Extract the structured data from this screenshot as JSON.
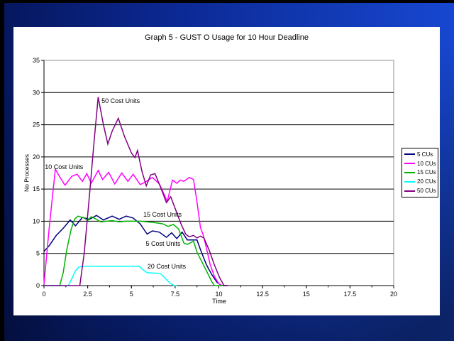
{
  "slide": {
    "frame_color_dark": "#06175e",
    "frame_color_bright": "#1747d0",
    "sheet_color": "#ffffff"
  },
  "chart_data": {
    "type": "line",
    "title": "Graph 5 - GUST O Usage for 10 Hour Deadline",
    "xlabel": "Time",
    "ylabel": "No Processes",
    "xlim": [
      0,
      20
    ],
    "ylim": [
      0,
      35
    ],
    "x_ticks": [
      0,
      2.5,
      5,
      7.5,
      10,
      12.5,
      15,
      17.5,
      20
    ],
    "y_ticks": [
      0,
      5,
      10,
      15,
      20,
      25,
      30,
      35
    ],
    "grid": "horizontal-black",
    "plot_border_color": "#909090",
    "legend_position": "right",
    "series": [
      {
        "name": "5 CUs",
        "color": "#000080",
        "points": [
          [
            0,
            5.3
          ],
          [
            0.3,
            6.2
          ],
          [
            0.7,
            7.8
          ],
          [
            1.1,
            8.9
          ],
          [
            1.5,
            10.2
          ],
          [
            1.8,
            9.3
          ],
          [
            2.2,
            10.6
          ],
          [
            2.6,
            10.3
          ],
          [
            3.0,
            10.9
          ],
          [
            3.4,
            10.2
          ],
          [
            3.9,
            10.8
          ],
          [
            4.3,
            10.3
          ],
          [
            4.7,
            10.8
          ],
          [
            5.1,
            10.5
          ],
          [
            5.5,
            9.6
          ],
          [
            5.9,
            8.0
          ],
          [
            6.2,
            8.5
          ],
          [
            6.6,
            8.3
          ],
          [
            7.0,
            7.5
          ],
          [
            7.3,
            8.2
          ],
          [
            7.6,
            7.3
          ],
          [
            7.9,
            8.3
          ],
          [
            8.2,
            7.1
          ],
          [
            8.75,
            7.1
          ],
          [
            9.0,
            5.2
          ],
          [
            9.3,
            3.2
          ],
          [
            9.6,
            1.7
          ],
          [
            9.9,
            0.5
          ],
          [
            10.15,
            0
          ],
          [
            10.5,
            0
          ]
        ]
      },
      {
        "name": "10 CUs",
        "color": "#ff00ff",
        "points": [
          [
            0,
            0.2
          ],
          [
            0.3,
            9.0
          ],
          [
            0.65,
            18.1
          ],
          [
            0.9,
            16.9
          ],
          [
            1.2,
            15.6
          ],
          [
            1.6,
            17.0
          ],
          [
            1.9,
            17.3
          ],
          [
            2.2,
            16.2
          ],
          [
            2.45,
            17.4
          ],
          [
            2.7,
            15.9
          ],
          [
            3.1,
            17.9
          ],
          [
            3.35,
            16.5
          ],
          [
            3.7,
            17.6
          ],
          [
            4.05,
            15.8
          ],
          [
            4.45,
            17.5
          ],
          [
            4.8,
            16.2
          ],
          [
            5.1,
            17.3
          ],
          [
            5.5,
            15.7
          ],
          [
            5.8,
            16.1
          ],
          [
            6.2,
            16.8
          ],
          [
            6.6,
            15.8
          ],
          [
            7.05,
            13.1
          ],
          [
            7.35,
            16.4
          ],
          [
            7.6,
            15.9
          ],
          [
            7.8,
            16.4
          ],
          [
            8.0,
            16.2
          ],
          [
            8.3,
            16.8
          ],
          [
            8.55,
            16.5
          ],
          [
            8.75,
            13.0
          ],
          [
            8.95,
            9.0
          ],
          [
            9.1,
            7.9
          ],
          [
            9.25,
            6.3
          ],
          [
            9.5,
            3.3
          ],
          [
            9.75,
            1.4
          ],
          [
            10.0,
            0.3
          ],
          [
            10.2,
            0
          ],
          [
            10.5,
            0
          ]
        ]
      },
      {
        "name": "15 CUs",
        "color": "#00b400",
        "points": [
          [
            0,
            0
          ],
          [
            0.9,
            0
          ],
          [
            1.1,
            2.0
          ],
          [
            1.3,
            5.5
          ],
          [
            1.55,
            8.7
          ],
          [
            1.75,
            10.3
          ],
          [
            1.95,
            10.8
          ],
          [
            2.3,
            10.5
          ],
          [
            2.5,
            10.1
          ],
          [
            2.7,
            10.7
          ],
          [
            3.0,
            10.3
          ],
          [
            3.25,
            9.9
          ],
          [
            3.6,
            10.0
          ],
          [
            3.9,
            10.1
          ],
          [
            4.3,
            9.9
          ],
          [
            4.7,
            10.0
          ],
          [
            5.1,
            10.0
          ],
          [
            5.5,
            10.0
          ],
          [
            5.9,
            9.9
          ],
          [
            6.3,
            9.8
          ],
          [
            6.8,
            9.6
          ],
          [
            7.1,
            9.2
          ],
          [
            7.4,
            9.5
          ],
          [
            7.7,
            8.8
          ],
          [
            8.0,
            6.6
          ],
          [
            8.2,
            6.4
          ],
          [
            8.55,
            6.9
          ],
          [
            8.75,
            5.2
          ],
          [
            9.1,
            3.3
          ],
          [
            9.4,
            1.7
          ],
          [
            9.6,
            0.6
          ],
          [
            9.75,
            0
          ],
          [
            10.5,
            0
          ]
        ]
      },
      {
        "name": "20 CUs",
        "color": "#00ffff",
        "points": [
          [
            0,
            0
          ],
          [
            1.4,
            0
          ],
          [
            1.6,
            1.1
          ],
          [
            1.8,
            2.3
          ],
          [
            2.0,
            2.9
          ],
          [
            2.3,
            3.0
          ],
          [
            5.45,
            3.0
          ],
          [
            5.65,
            2.5
          ],
          [
            5.9,
            2.0
          ],
          [
            6.65,
            1.9
          ],
          [
            6.95,
            1.1
          ],
          [
            7.2,
            0.4
          ],
          [
            7.45,
            0
          ],
          [
            7.6,
            0
          ]
        ]
      },
      {
        "name": "50 CUs",
        "color": "#800080",
        "points": [
          [
            0,
            0
          ],
          [
            2.05,
            0
          ],
          [
            2.3,
            5.0
          ],
          [
            2.6,
            14.0
          ],
          [
            2.85,
            22.0
          ],
          [
            3.1,
            29.3
          ],
          [
            3.4,
            25.0
          ],
          [
            3.65,
            22.0
          ],
          [
            3.9,
            24.0
          ],
          [
            4.25,
            26.0
          ],
          [
            4.6,
            23.2
          ],
          [
            5.0,
            20.6
          ],
          [
            5.2,
            19.9
          ],
          [
            5.35,
            21.0
          ],
          [
            5.6,
            17.8
          ],
          [
            5.85,
            15.5
          ],
          [
            6.1,
            17.2
          ],
          [
            6.35,
            17.4
          ],
          [
            6.65,
            15.4
          ],
          [
            7.0,
            12.9
          ],
          [
            7.25,
            13.8
          ],
          [
            7.6,
            11.3
          ],
          [
            7.85,
            9.5
          ],
          [
            8.1,
            8.0
          ],
          [
            8.3,
            7.6
          ],
          [
            8.55,
            7.8
          ],
          [
            8.75,
            7.4
          ],
          [
            8.95,
            7.7
          ],
          [
            9.15,
            7.4
          ],
          [
            9.45,
            5.5
          ],
          [
            9.75,
            3.2
          ],
          [
            10.05,
            1.2
          ],
          [
            10.3,
            0
          ],
          [
            10.5,
            0
          ]
        ]
      }
    ],
    "annotations": [
      {
        "label": "50 Cost Units",
        "t": 3.29,
        "v": 29.3
      },
      {
        "label": "10 Cost Units",
        "t": 0.05,
        "v": 19.0
      },
      {
        "label": "15 Cost Units",
        "t": 5.68,
        "v": 11.6
      },
      {
        "label": "5 Cost Units",
        "t": 5.82,
        "v": 7.1
      },
      {
        "label": "20 Cost Units",
        "t": 5.92,
        "v": 3.5
      }
    ],
    "legend": [
      "5 CUs",
      "10 CUs",
      "15 CUs",
      "20 CUs",
      "50 CUs"
    ]
  }
}
